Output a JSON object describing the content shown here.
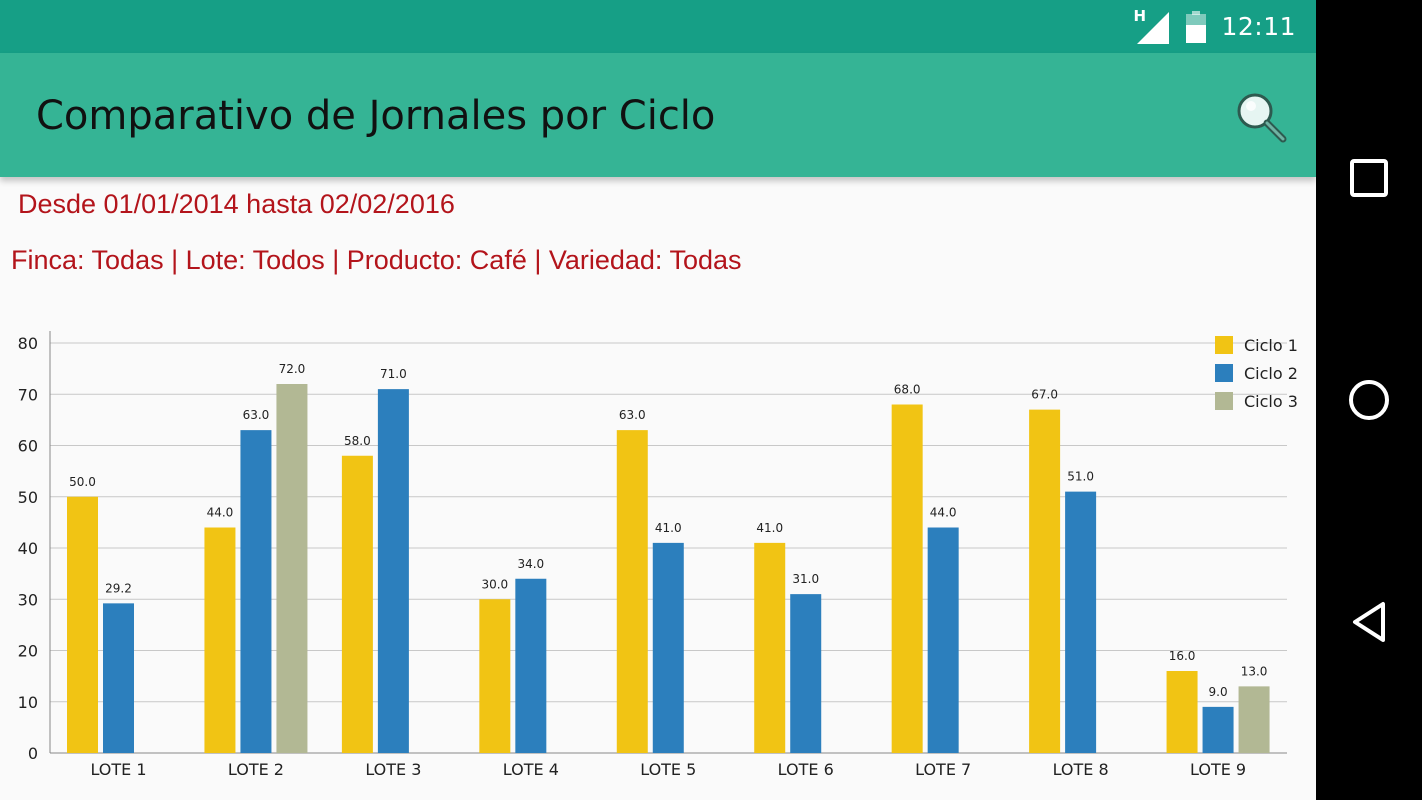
{
  "status_bar": {
    "network": "H",
    "time": "12:11"
  },
  "app_bar": {
    "title": "Comparativo de Jornales por Ciclo",
    "search_icon": "search-icon"
  },
  "report": {
    "date_range": "Desde 01/01/2014 hasta 02/02/2016",
    "filters": "Finca: Todas | Lote: Todos | Producto: Café | Variedad: Todas"
  },
  "chart_data": {
    "type": "bar",
    "categories": [
      "LOTE 1",
      "LOTE 2",
      "LOTE 3",
      "LOTE 4",
      "LOTE 5",
      "LOTE 6",
      "LOTE 7",
      "LOTE 8",
      "LOTE 9"
    ],
    "series": [
      {
        "name": "Ciclo 1",
        "color": "#f1c414",
        "values": [
          50.0,
          44.0,
          58.0,
          30.0,
          63.0,
          41.0,
          68.0,
          67.0,
          16.0
        ]
      },
      {
        "name": "Ciclo 2",
        "color": "#2c7fbd",
        "values": [
          29.2,
          63.0,
          71.0,
          34.0,
          41.0,
          31.0,
          44.0,
          51.0,
          9.0
        ]
      },
      {
        "name": "Ciclo 3",
        "color": "#b2b894",
        "values": [
          null,
          72.0,
          null,
          null,
          null,
          null,
          null,
          null,
          13.0
        ]
      }
    ],
    "ylim": [
      0,
      80
    ],
    "yticks": [
      0,
      10,
      20,
      30,
      40,
      50,
      60,
      70,
      80
    ],
    "grid": true,
    "legend": "top-right"
  },
  "nav": {
    "recents_icon": "square-icon",
    "home_icon": "circle-icon",
    "back_icon": "triangle-back-icon"
  }
}
